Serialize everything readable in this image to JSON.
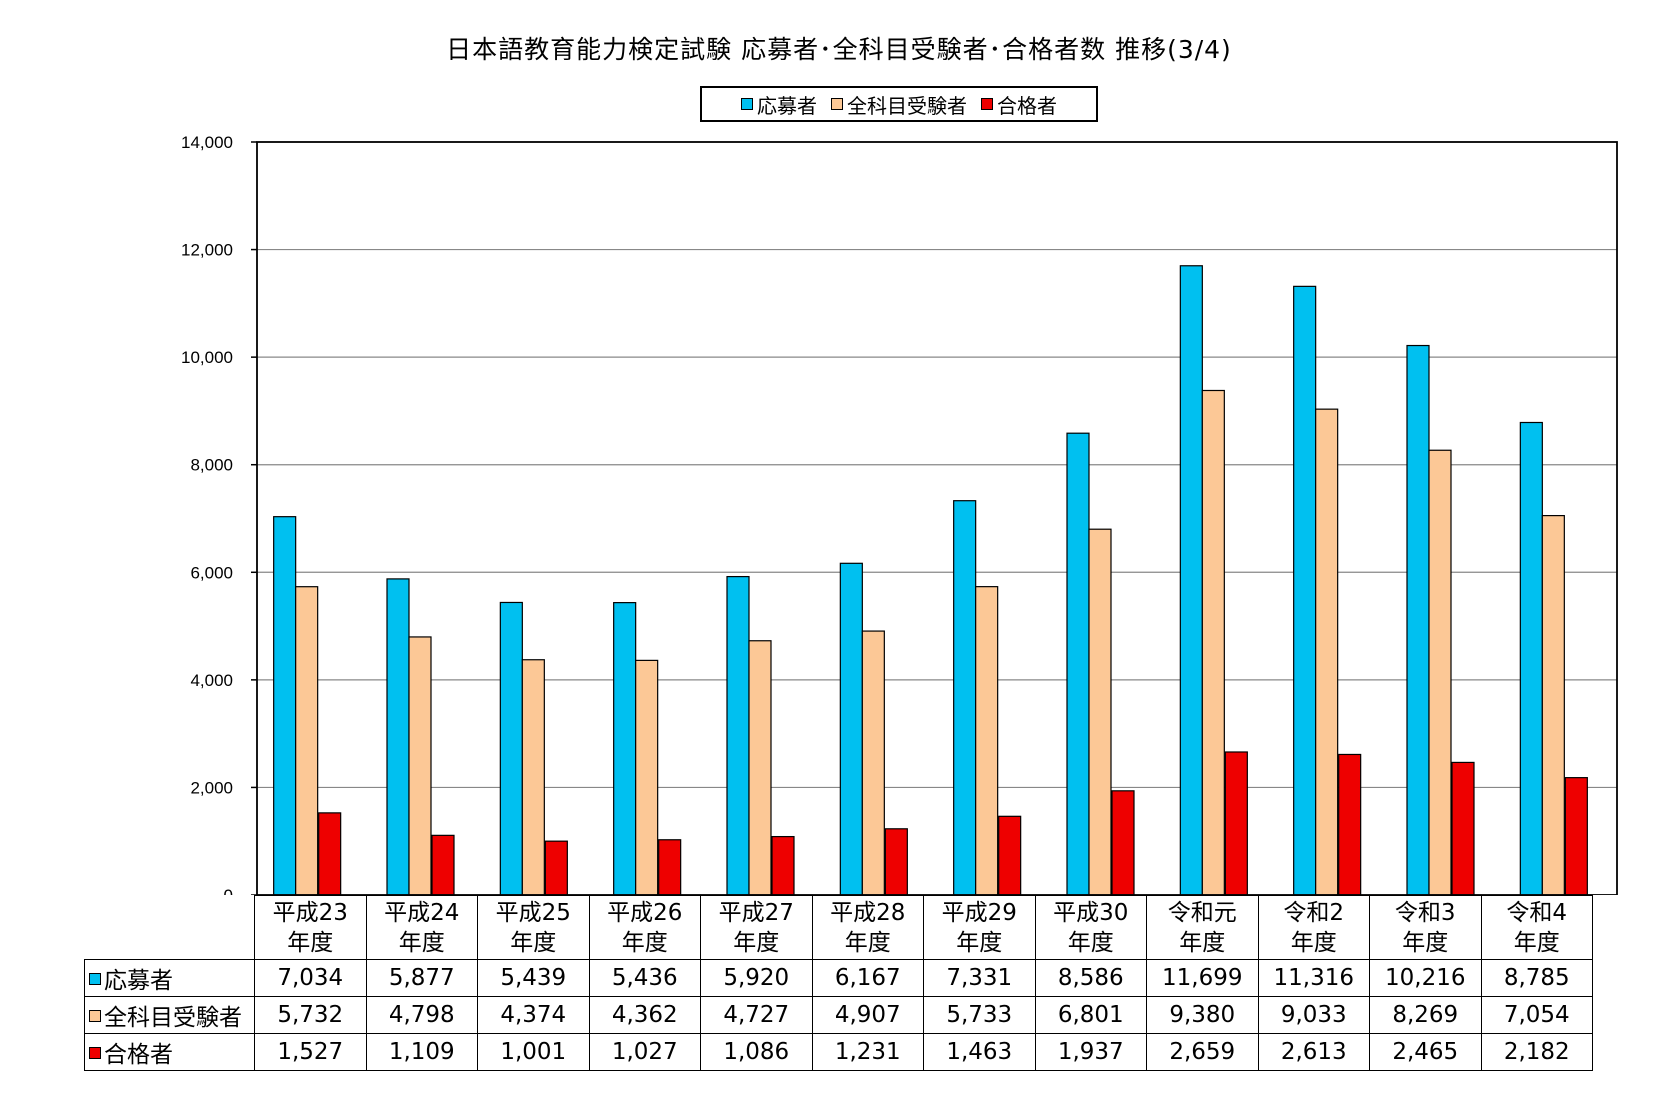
{
  "chart_data": {
    "type": "bar",
    "title": "日本語教育能力検定試験 応募者･全科目受験者･合格者数 推移(3/4)",
    "categories": [
      [
        "平成23",
        "年度"
      ],
      [
        "平成24",
        "年度"
      ],
      [
        "平成25",
        "年度"
      ],
      [
        "平成26",
        "年度"
      ],
      [
        "平成27",
        "年度"
      ],
      [
        "平成28",
        "年度"
      ],
      [
        "平成29",
        "年度"
      ],
      [
        "平成30",
        "年度"
      ],
      [
        "令和元",
        "年度"
      ],
      [
        "令和2",
        "年度"
      ],
      [
        "令和3",
        "年度"
      ],
      [
        "令和4",
        "年度"
      ]
    ],
    "series": [
      {
        "name": "応募者",
        "color": "#00c0f0",
        "values": [
          7034,
          5877,
          5439,
          5436,
          5920,
          6167,
          7331,
          8586,
          11699,
          11316,
          10216,
          8785
        ],
        "labels": [
          "7,034",
          "5,877",
          "5,439",
          "5,436",
          "5,920",
          "6,167",
          "7,331",
          "8,586",
          "11,699",
          "11,316",
          "10,216",
          "8,785"
        ]
      },
      {
        "name": "全科目受験者",
        "color": "#fcc896",
        "values": [
          5732,
          4798,
          4374,
          4362,
          4727,
          4907,
          5733,
          6801,
          9380,
          9033,
          8269,
          7054
        ],
        "labels": [
          "5,732",
          "4,798",
          "4,374",
          "4,362",
          "4,727",
          "4,907",
          "5,733",
          "6,801",
          "9,380",
          "9,033",
          "8,269",
          "7,054"
        ]
      },
      {
        "name": "合格者",
        "color": "#ee0000",
        "values": [
          1527,
          1109,
          1001,
          1027,
          1086,
          1231,
          1463,
          1937,
          2659,
          2613,
          2465,
          2182
        ],
        "labels": [
          "1,527",
          "1,109",
          "1,001",
          "1,027",
          "1,086",
          "1,231",
          "1,463",
          "1,937",
          "2,659",
          "2,613",
          "2,465",
          "2,182"
        ]
      }
    ],
    "ylim": [
      0,
      14000
    ],
    "yticks": [
      0,
      2000,
      4000,
      6000,
      8000,
      10000,
      12000,
      14000
    ],
    "ytick_labels": [
      "0",
      "2,000",
      "4,000",
      "6,000",
      "8,000",
      "10,000",
      "12,000",
      "14,000"
    ],
    "grid": true,
    "legend_position": "top-center",
    "data_table": true
  }
}
